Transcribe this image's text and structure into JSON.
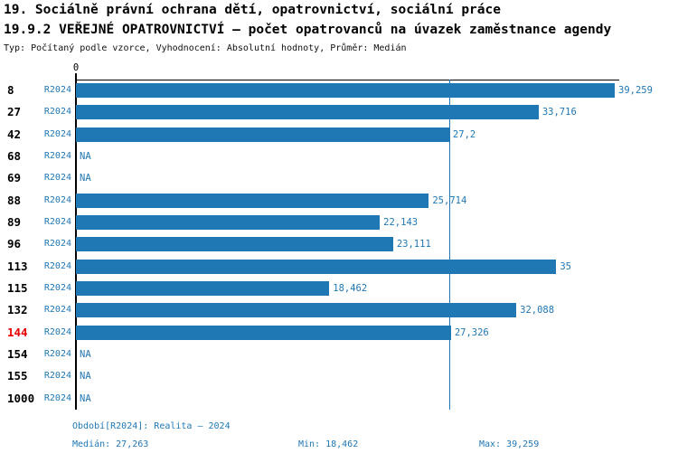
{
  "title_line1": "19. Sociálně právní ochrana dětí, opatrovnictví, sociální práce",
  "title_line2": "19.9.2 VEŘEJNÉ OPATROVNICTVÍ – počet opatrovanců na úvazek zaměstnance agendy",
  "subtitle": "Typ: Počítaný podle vzorce, Vyhodnocení: Absolutní hodnoty, Průměr: Medián",
  "chart_data": {
    "type": "bar",
    "orientation": "horizontal",
    "axis_zero_label": "0",
    "period_label": "R2024",
    "xlim": [
      0,
      39.6
    ],
    "grid": false,
    "bar_color": "#1f77b4",
    "highlight_color": "#e60000",
    "median_value": 27.263,
    "rows": [
      {
        "id": "8",
        "value": 39.259,
        "label": "39,259",
        "highlight": false
      },
      {
        "id": "27",
        "value": 33.716,
        "label": "33,716",
        "highlight": false
      },
      {
        "id": "42",
        "value": 27.2,
        "label": "27,2",
        "highlight": false
      },
      {
        "id": "68",
        "value": null,
        "label": "NA",
        "highlight": false
      },
      {
        "id": "69",
        "value": null,
        "label": "NA",
        "highlight": false
      },
      {
        "id": "88",
        "value": 25.714,
        "label": "25,714",
        "highlight": false
      },
      {
        "id": "89",
        "value": 22.143,
        "label": "22,143",
        "highlight": false
      },
      {
        "id": "96",
        "value": 23.111,
        "label": "23,111",
        "highlight": false
      },
      {
        "id": "113",
        "value": 35,
        "label": "35",
        "highlight": false
      },
      {
        "id": "115",
        "value": 18.462,
        "label": "18,462",
        "highlight": false
      },
      {
        "id": "132",
        "value": 32.088,
        "label": "32,088",
        "highlight": false
      },
      {
        "id": "144",
        "value": 27.326,
        "label": "27,326",
        "highlight": true
      },
      {
        "id": "154",
        "value": null,
        "label": "NA",
        "highlight": false
      },
      {
        "id": "155",
        "value": null,
        "label": "NA",
        "highlight": false
      },
      {
        "id": "1000",
        "value": null,
        "label": "NA",
        "highlight": false
      }
    ]
  },
  "footer": {
    "period": "Období[R2024]: Realita – 2024",
    "median": "Medián: 27,263",
    "min": "Min: 18,462",
    "max": "Max: 39,259"
  }
}
